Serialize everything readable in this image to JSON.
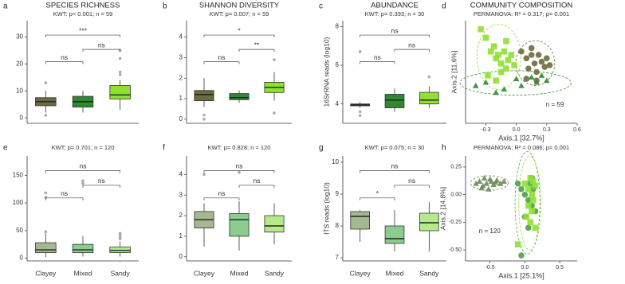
{
  "chart_data": [
    {
      "type": "box",
      "label": "a",
      "title": "SPECIES RICHNESS",
      "subtitle": "KWT: p< 0.001; n = 59",
      "categories": [
        null,
        null,
        null
      ],
      "ylim": [
        -2,
        36
      ],
      "yticks": [
        0,
        10,
        20,
        30
      ],
      "boxes": [
        {
          "color": "#6b6b3d",
          "whisker_low": 2,
          "q1": 4.5,
          "median": 6,
          "q3": 7.5,
          "whisker_high": 10,
          "outliers": [
            13,
            1
          ]
        },
        {
          "color": "#2f8a2f",
          "whisker_low": 2,
          "q1": 4,
          "median": 6,
          "q3": 8,
          "whisker_high": 10,
          "outliers": []
        },
        {
          "color": "#8ee031",
          "whisker_low": 3,
          "q1": 7,
          "median": 8.5,
          "q3": 12,
          "whisker_high": 14,
          "outliers": [
            16,
            17,
            22,
            25
          ]
        }
      ],
      "brackets": [
        "ns",
        "ns",
        "***"
      ]
    },
    {
      "type": "box",
      "label": "b",
      "title": "SHANNON DIVERSITY",
      "subtitle": "KWT: p= 0.007; n = 59",
      "categories": [
        null,
        null,
        null
      ],
      "ylim": [
        -0.2,
        4.8
      ],
      "yticks": [
        0,
        1,
        2,
        3,
        4
      ],
      "boxes": [
        {
          "color": "#6b6b3d",
          "whisker_low": 0.6,
          "q1": 0.9,
          "median": 1.2,
          "q3": 1.4,
          "whisker_high": 2.0,
          "outliers": [
            0.2,
            0
          ]
        },
        {
          "color": "#2f8a2f",
          "whisker_low": 0.8,
          "q1": 0.95,
          "median": 1.05,
          "q3": 1.25,
          "whisker_high": 1.4,
          "outliers": []
        },
        {
          "color": "#8ee031",
          "whisker_low": 0.9,
          "q1": 1.3,
          "median": 1.55,
          "q3": 1.8,
          "whisker_high": 2.3,
          "outliers": [
            2.9,
            0.3
          ]
        }
      ],
      "brackets": [
        "ns",
        "**",
        "*"
      ]
    },
    {
      "type": "box",
      "label": "c",
      "title": "ABUNDANCE",
      "subtitle": "KWT: p= 0.393; n = 30",
      "y_label": "16SrRNA reads (log10)",
      "categories": [
        null,
        null,
        null
      ],
      "ylim": [
        3,
        8.3
      ],
      "yticks": [
        4,
        6,
        8
      ],
      "boxes": [
        {
          "color": "#6b6b3d",
          "whisker_low": 3.8,
          "q1": 3.9,
          "median": 3.95,
          "q3": 4.0,
          "whisker_high": 4.1,
          "outliers": [
            6.7,
            3.6,
            3.4
          ]
        },
        {
          "color": "#2f8a2f",
          "whisker_low": 3.6,
          "q1": 3.8,
          "median": 4.2,
          "q3": 4.5,
          "whisker_high": 4.8,
          "outliers": []
        },
        {
          "color": "#8ee031",
          "whisker_low": 3.8,
          "q1": 4.0,
          "median": 4.2,
          "q3": 4.6,
          "whisker_high": 4.9,
          "outliers": [
            5.4
          ]
        }
      ],
      "brackets": [
        "ns",
        "ns",
        "ns"
      ]
    },
    {
      "type": "scatter",
      "label": "d",
      "title": "COMMUNITY COMPOSITION",
      "subtitle": "PERMANOVA: R² = 0.317; p= 0.001",
      "x_label": "Axis.1   [32.7%]",
      "y_label": "Axis.2   [11.6%]",
      "annotation": "n = 59",
      "xlim": [
        -0.5,
        0.6
      ],
      "ylim": [
        -0.3,
        0.3
      ],
      "xticks": [
        -0.3,
        {
          "value": 0,
          "label": "0.0"
        },
        0.3,
        0.6
      ],
      "yticks": [],
      "series": [
        {
          "color": "#6b6b3d",
          "shape": "circle",
          "x": [
            0.05,
            0.1,
            0.12,
            0.15,
            0.18,
            0.2,
            0.22,
            0.25,
            0.28,
            0.3,
            0.33,
            0.1,
            0.2,
            0.15
          ],
          "y": [
            0.12,
            0.08,
            0.02,
            0.1,
            0.05,
            0.0,
            0.1,
            0.06,
            0.03,
            0.08,
            0.04,
            -0.04,
            -0.05,
            0.14
          ]
        },
        {
          "color": "#2f8a2f",
          "shape": "triangle",
          "x": [
            -0.4,
            -0.3,
            -0.12,
            0.0,
            0.05,
            0.15,
            0.2,
            0.25,
            0.3,
            -0.2
          ],
          "y": [
            -0.08,
            -0.06,
            -0.1,
            -0.04,
            -0.08,
            -0.03,
            -0.06,
            -0.02,
            -0.05,
            -0.12
          ]
        },
        {
          "color": "#8ee031",
          "shape": "square",
          "x": [
            -0.35,
            -0.3,
            -0.25,
            -0.22,
            -0.2,
            -0.18,
            -0.15,
            -0.12,
            -0.1,
            -0.08,
            -0.05,
            -0.02,
            -0.28,
            -0.15,
            -0.1,
            -0.2
          ],
          "y": [
            0.25,
            0.2,
            0.12,
            0.15,
            0.08,
            0.1,
            0.05,
            0.12,
            0.02,
            0.07,
            0.1,
            0.04,
            -0.02,
            0.0,
            0.18,
            -0.05
          ]
        }
      ]
    },
    {
      "type": "box",
      "label": "e",
      "subtitle": "KWT: p= 0.701; n = 120",
      "categories": [
        "Clayey",
        "Mixed",
        "Sandy"
      ],
      "ylim": [
        -5,
        185
      ],
      "yticks": [
        0,
        50,
        100,
        150
      ],
      "boxes": [
        {
          "color": "#a5b991",
          "whisker_low": 2,
          "q1": 10,
          "median": 15,
          "q3": 28,
          "whisker_high": 45,
          "outliers": [
            48,
            110,
            118
          ]
        },
        {
          "color": "#8ccd8f",
          "whisker_low": 3,
          "q1": 10,
          "median": 15,
          "q3": 25,
          "whisker_high": 40,
          "outliers": [
            135,
            140
          ]
        },
        {
          "color": "#b5ea8c",
          "whisker_low": 3,
          "q1": 10,
          "median": 14,
          "q3": 20,
          "whisker_high": 30,
          "outliers": [
            35,
            38,
            42,
            45
          ]
        }
      ],
      "brackets": [
        "ns",
        "ns",
        "ns"
      ]
    },
    {
      "type": "box",
      "label": "f",
      "subtitle": "KWT: p= 0.828; n = 120",
      "categories": [
        "Clayey",
        "Mixed",
        "Sandy"
      ],
      "ylim": [
        -0.2,
        4.9
      ],
      "yticks": [
        0,
        1,
        2,
        3,
        4
      ],
      "boxes": [
        {
          "color": "#a5b991",
          "whisker_low": 0.5,
          "q1": 1.4,
          "median": 1.8,
          "q3": 2.2,
          "whisker_high": 2.6,
          "outliers": [
            4.0
          ]
        },
        {
          "color": "#8ccd8f",
          "whisker_low": 0.3,
          "q1": 1.0,
          "median": 1.8,
          "q3": 2.1,
          "whisker_high": 2.7,
          "outliers": [
            4.1
          ]
        },
        {
          "color": "#b5ea8c",
          "whisker_low": 0.6,
          "q1": 1.2,
          "median": 1.5,
          "q3": 2.0,
          "whisker_high": 2.6,
          "outliers": []
        }
      ],
      "brackets": [
        "ns",
        "ns",
        "ns"
      ]
    },
    {
      "type": "box",
      "label": "g",
      "subtitle": "KWT: p= 0.075; n = 30",
      "y_label": "ITS reads (log10)",
      "categories": [
        "Clayey",
        "Mixed",
        "Sandy"
      ],
      "ylim": [
        6.9,
        10.2
      ],
      "yticks": [
        7,
        8,
        9,
        10
      ],
      "boxes": [
        {
          "color": "#a5b991",
          "whisker_low": 7.5,
          "q1": 7.9,
          "median": 8.3,
          "q3": 8.45,
          "whisker_high": 8.5,
          "outliers": []
        },
        {
          "color": "#8ccd8f",
          "whisker_low": 7.2,
          "q1": 7.45,
          "median": 7.6,
          "q3": 8.0,
          "whisker_high": 8.5,
          "outliers": []
        },
        {
          "color": "#b5ea8c",
          "whisker_low": 7.2,
          "q1": 7.85,
          "median": 8.1,
          "q3": 8.4,
          "whisker_high": 8.75,
          "outliers": []
        }
      ],
      "brackets": [
        "*",
        "ns",
        "ns"
      ]
    },
    {
      "type": "scatter",
      "label": "h",
      "subtitle": "PERMANOVA: R² = 0.086; p= 0.001",
      "x_label": "Axis.1   [25.1%]",
      "y_label": "Axis.2   [14.8%]",
      "annotation": "n = 120",
      "xlim": [
        -0.85,
        0.75
      ],
      "ylim": [
        -0.6,
        0.35
      ],
      "xticks": [
        -0.5,
        {
          "value": 0,
          "label": "0.0"
        },
        0.5
      ],
      "yticks": [
        0.25,
        {
          "value": 0,
          "label": "0.00"
        },
        -0.25,
        {
          "value": -0.5,
          "label": "-0.50"
        }
      ],
      "series": [
        {
          "color": "#6d8a5a",
          "shape": "triangle",
          "x": [
            -0.7,
            -0.65,
            -0.6,
            -0.58,
            -0.55,
            -0.5,
            -0.48,
            -0.45,
            -0.42,
            -0.4,
            -0.35,
            -0.3,
            -0.52,
            -0.62
          ],
          "y": [
            0.1,
            0.12,
            0.08,
            0.15,
            0.1,
            0.14,
            0.12,
            0.09,
            0.11,
            0.13,
            0.1,
            0.12,
            0.05,
            0.06
          ]
        },
        {
          "color": "#4f9e4f",
          "shape": "circle",
          "x": [
            -0.1,
            -0.05,
            0.0,
            0.05,
            0.08,
            0.1,
            0.12,
            0.15,
            0.0,
            0.05,
            -0.05,
            0.1
          ],
          "y": [
            0.1,
            0.05,
            0.0,
            -0.05,
            0.1,
            -0.1,
            0.05,
            -0.15,
            -0.2,
            -0.3,
            -0.55,
            0.15
          ]
        },
        {
          "color": "#8ee031",
          "shape": "square",
          "x": [
            0.0,
            0.05,
            0.08,
            0.1,
            0.12,
            0.15,
            0.05,
            0.1,
            0.02,
            0.12,
            0.08,
            0.15,
            -0.1
          ],
          "y": [
            0.1,
            0.05,
            0.15,
            0.0,
            -0.05,
            0.08,
            -0.1,
            -0.15,
            -0.2,
            0.12,
            -0.25,
            -0.3,
            -0.45
          ]
        }
      ]
    }
  ]
}
